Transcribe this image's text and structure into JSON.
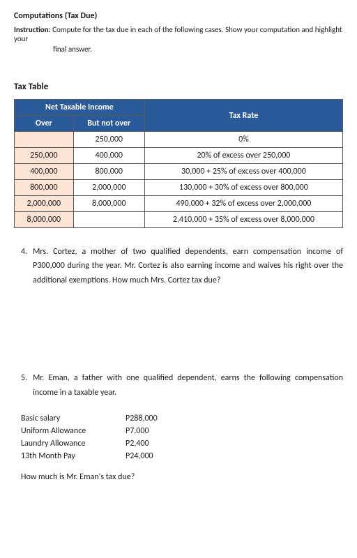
{
  "header": {
    "title": "Computations (Tax Due)",
    "instruction_label": "Instruction:",
    "instruction_text": "Compute for the tax due in each of the following cases. Show your computation and highlight your",
    "instruction_tail": "final answer."
  },
  "tax_table": {
    "heading": "Tax Table",
    "header_group": "Net Taxable Income",
    "header_over": "Over",
    "header_butnot": "But not over",
    "header_rate": "Tax Rate",
    "colors": {
      "header_bg": "#2a5a9a",
      "header_fg": "#ffffff",
      "over_bg": "#fbe4d5",
      "border": "#5a5a5a"
    },
    "rows": [
      {
        "over": "",
        "butnot": "250,000",
        "rate": "0%"
      },
      {
        "over": "250,000",
        "butnot": "400,000",
        "rate": "20% of excess over 250,000"
      },
      {
        "over": "400,000",
        "butnot": "800,000",
        "rate": "30,000 + 25% of excess over 400,000"
      },
      {
        "over": "800,000",
        "butnot": "2,000,000",
        "rate": "130,000 + 30% of excess over 800,000"
      },
      {
        "over": "2,000,000",
        "butnot": "8,000,000",
        "rate": "490,000 + 32% of excess over 2,000,000"
      },
      {
        "over": "8,000,000",
        "butnot": "",
        "rate": "2,410,000 + 35% of excess over 8,000,000"
      }
    ]
  },
  "q4": {
    "num": "4.",
    "text": "Mrs. Cortez, a mother of two qualified dependents, earn compensation income of P300,000 during the year. Mr. Cortez is also earning income and waives his right over the additional exemptions. How much Mrs. Cortez tax due?"
  },
  "q5": {
    "num": "5.",
    "text": "Mr. Eman, a father with one qualified dependent, earns the following compensation income in a taxable year.",
    "items": [
      {
        "label": "Basic salary",
        "value": "P288,000"
      },
      {
        "label": "Uniform Allowance",
        "value": "P7,000"
      },
      {
        "label": "Laundry Allowance",
        "value": "P2,400"
      },
      {
        "label": "13th Month Pay",
        "value": "P24,000"
      }
    ],
    "final": "How much is Mr. Eman's tax due?"
  }
}
